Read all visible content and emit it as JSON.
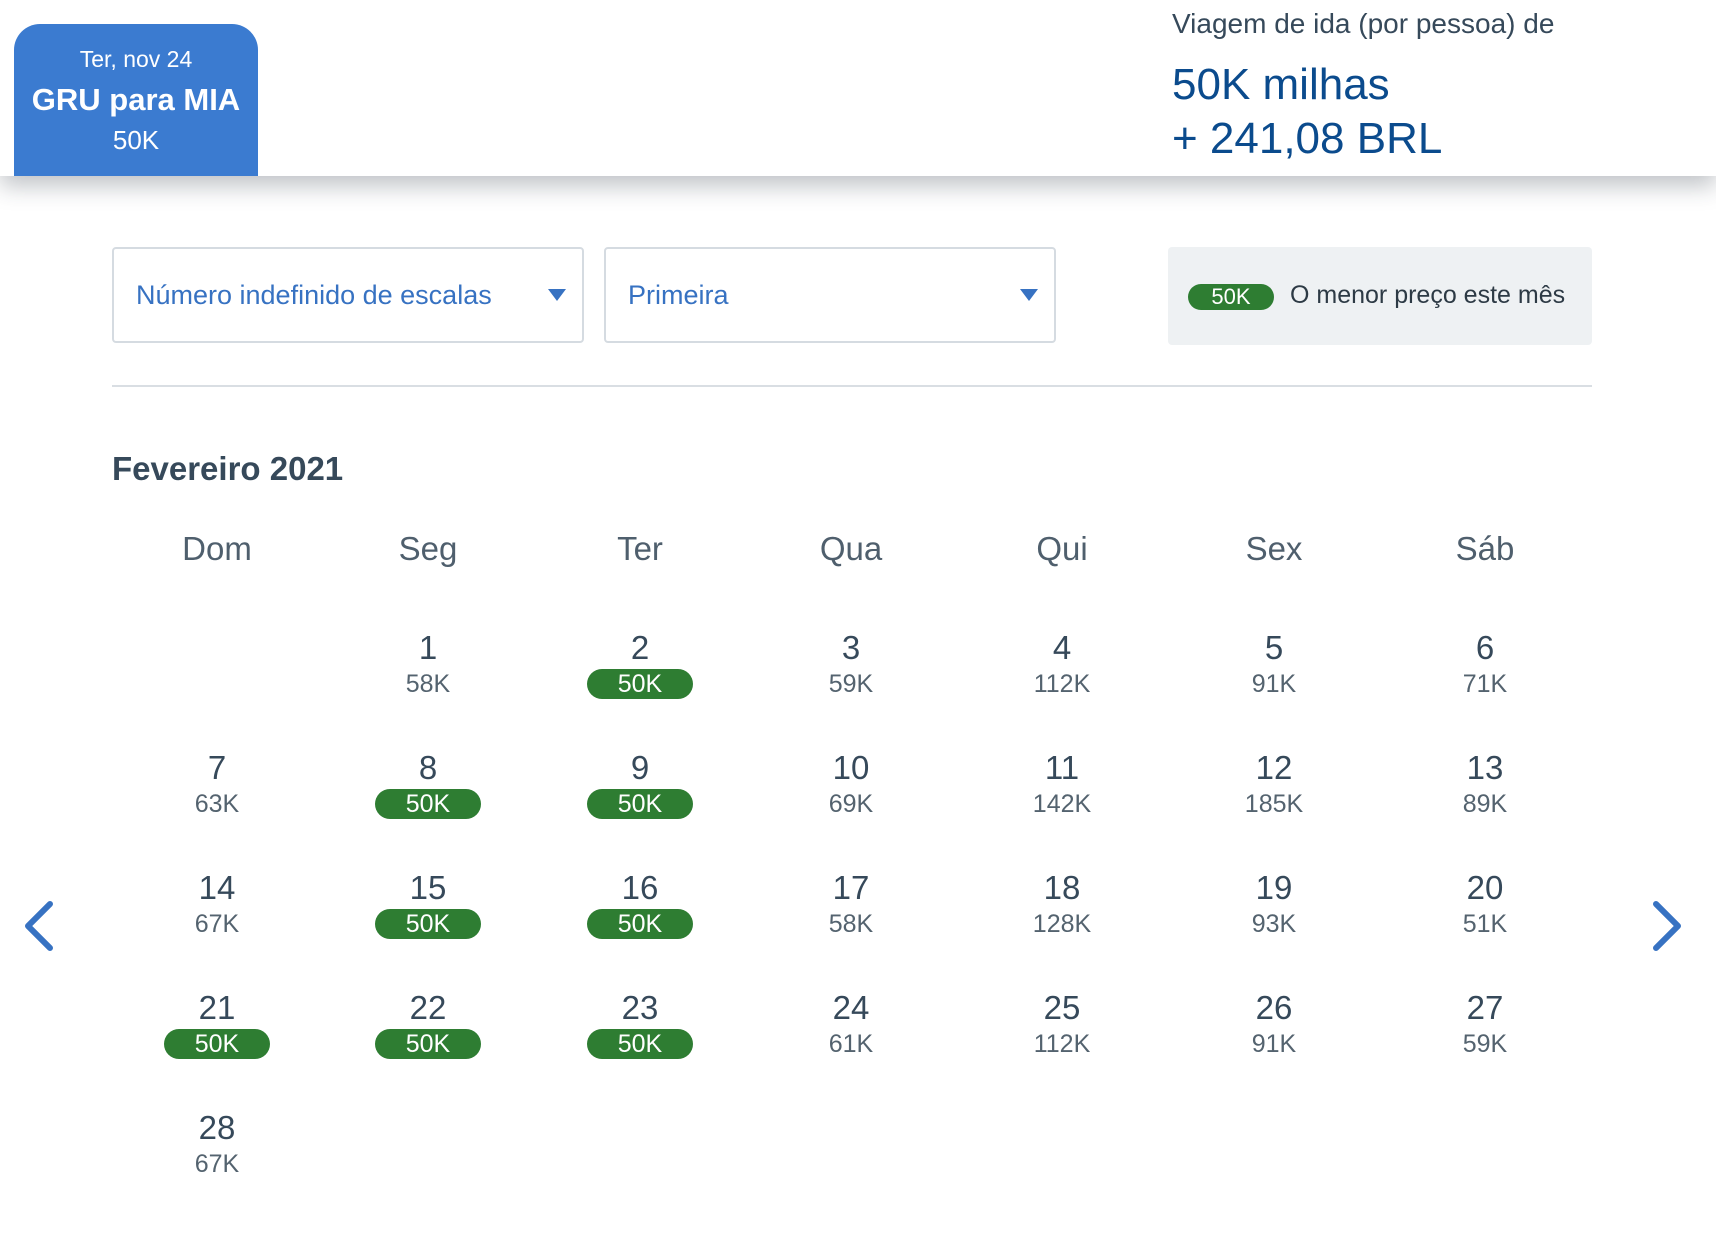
{
  "header": {
    "trip": {
      "date": "Ter, nov 24",
      "route": "GRU para MIA",
      "price": "50K"
    },
    "summary": {
      "label": "Viagem de ida (por pessoa) de",
      "miles": "50K milhas",
      "cash": "+ 241,08 BRL"
    }
  },
  "filters": {
    "stops": {
      "value": "Número indefinido de escalas"
    },
    "cabin": {
      "value": "Primeira"
    }
  },
  "legend": {
    "badge": "50K",
    "text": "O menor preço este mês"
  },
  "calendar": {
    "month": "Fevereiro 2021",
    "weekdays": [
      "Dom",
      "Seg",
      "Ter",
      "Qua",
      "Qui",
      "Sex",
      "Sáb"
    ],
    "days": [
      {
        "day": "1",
        "price": "58K",
        "lowest": false
      },
      {
        "day": "2",
        "price": "50K",
        "lowest": true
      },
      {
        "day": "3",
        "price": "59K",
        "lowest": false
      },
      {
        "day": "4",
        "price": "112K",
        "lowest": false
      },
      {
        "day": "5",
        "price": "91K",
        "lowest": false
      },
      {
        "day": "6",
        "price": "71K",
        "lowest": false
      },
      {
        "day": "7",
        "price": "63K",
        "lowest": false
      },
      {
        "day": "8",
        "price": "50K",
        "lowest": true
      },
      {
        "day": "9",
        "price": "50K",
        "lowest": true
      },
      {
        "day": "10",
        "price": "69K",
        "lowest": false
      },
      {
        "day": "11",
        "price": "142K",
        "lowest": false
      },
      {
        "day": "12",
        "price": "185K",
        "lowest": false
      },
      {
        "day": "13",
        "price": "89K",
        "lowest": false
      },
      {
        "day": "14",
        "price": "67K",
        "lowest": false
      },
      {
        "day": "15",
        "price": "50K",
        "lowest": true
      },
      {
        "day": "16",
        "price": "50K",
        "lowest": true
      },
      {
        "day": "17",
        "price": "58K",
        "lowest": false
      },
      {
        "day": "18",
        "price": "128K",
        "lowest": false
      },
      {
        "day": "19",
        "price": "93K",
        "lowest": false
      },
      {
        "day": "20",
        "price": "51K",
        "lowest": false
      },
      {
        "day": "21",
        "price": "50K",
        "lowest": true
      },
      {
        "day": "22",
        "price": "50K",
        "lowest": true
      },
      {
        "day": "23",
        "price": "50K",
        "lowest": true
      },
      {
        "day": "24",
        "price": "61K",
        "lowest": false
      },
      {
        "day": "25",
        "price": "112K",
        "lowest": false
      },
      {
        "day": "26",
        "price": "91K",
        "lowest": false
      },
      {
        "day": "27",
        "price": "59K",
        "lowest": false
      },
      {
        "day": "28",
        "price": "67K",
        "lowest": false
      }
    ]
  },
  "nav": {
    "prev_icon": "chevron-left-icon",
    "next_icon": "chevron-right-icon"
  },
  "colors": {
    "accent": "#3b7bd0",
    "link": "#3772c2",
    "lowest": "#2e7d32",
    "price_blue": "#0b4b8d"
  }
}
